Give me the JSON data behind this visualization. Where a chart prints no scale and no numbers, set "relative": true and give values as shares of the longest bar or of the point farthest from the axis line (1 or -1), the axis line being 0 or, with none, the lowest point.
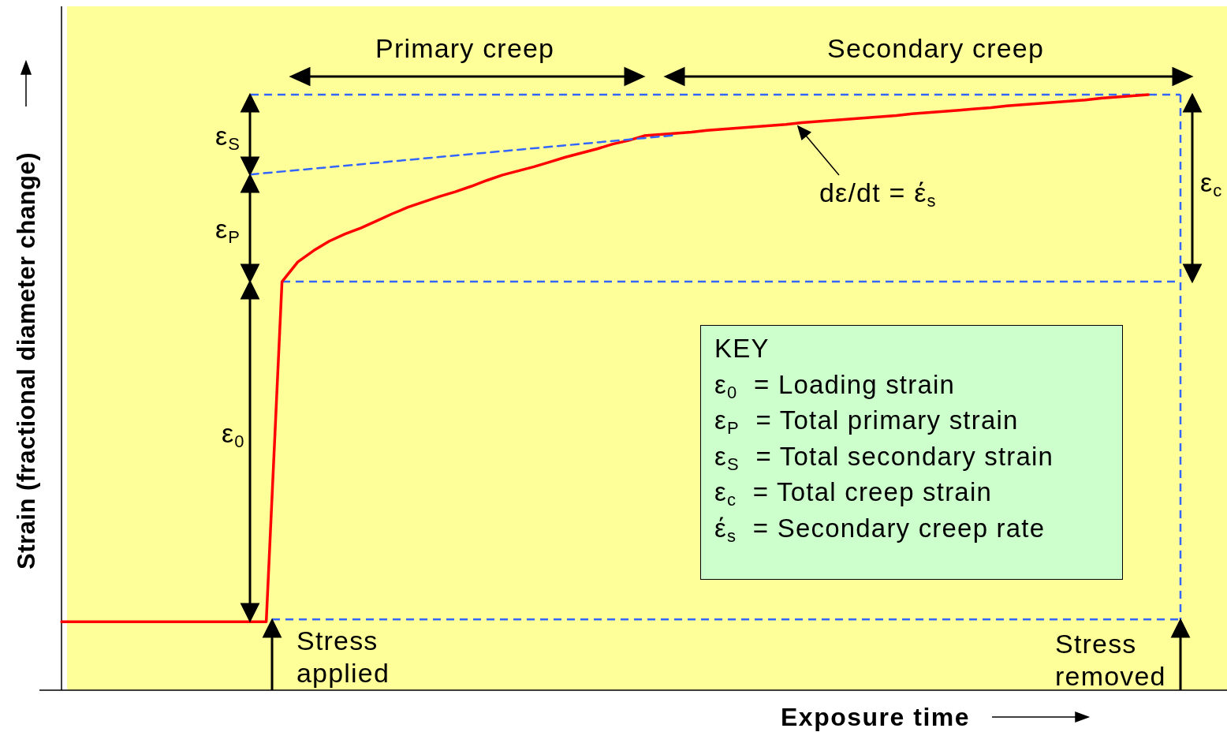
{
  "chart_data": {
    "type": "line",
    "relative": true,
    "marker": "none",
    "xlabel": "Exposure time",
    "ylabel": "Strain (fractional diameter change)",
    "categories": [
      null,
      null,
      null,
      null,
      null,
      null,
      null,
      null,
      null,
      null,
      null,
      null,
      null,
      null,
      null,
      null,
      null,
      null,
      null,
      null,
      null,
      null,
      null,
      null,
      null,
      null,
      null,
      null,
      null,
      null,
      null,
      null,
      null,
      null,
      null,
      null,
      null,
      null,
      null,
      null,
      null,
      null,
      null,
      null,
      null,
      null,
      null,
      null,
      null,
      null,
      null,
      null,
      null,
      null,
      null,
      null,
      null,
      null,
      null,
      null,
      null,
      null,
      null,
      null,
      null,
      null,
      null,
      null,
      null,
      null,
      null,
      null,
      null,
      null,
      null
    ],
    "series": [
      {
        "color": "#ff0000",
        "values": [
          0.115,
          0.115,
          0.115,
          0.115,
          0.115,
          0.115,
          0.115,
          0.115,
          0.115,
          0.115,
          0.115,
          0.115,
          0.115,
          0.115,
          0.686,
          0.719,
          0.738,
          0.754,
          0.766,
          0.776,
          0.788,
          0.8,
          0.811,
          0.82,
          0.829,
          0.837,
          0.846,
          0.856,
          0.865,
          0.872,
          0.879,
          0.887,
          0.895,
          0.902,
          0.909,
          0.917,
          0.923,
          0.931,
          0.933,
          0.935,
          0.937,
          0.94,
          0.942,
          0.944,
          0.946,
          0.948,
          0.95,
          0.953,
          0.955,
          0.957,
          0.959,
          0.961,
          0.963,
          0.965,
          0.968,
          0.97,
          0.972,
          0.974,
          0.976,
          0.978,
          0.981,
          0.983,
          0.985,
          0.987,
          0.989,
          0.991,
          0.994,
          0.996,
          0.998,
          1.0,
          null,
          null,
          null,
          null,
          null
        ]
      },
      {
        "type": "line",
        "color": "#3366ff",
        "line_style": "dashed",
        "values": [
          null,
          null,
          null,
          null,
          null,
          null,
          null,
          null,
          null,
          null,
          null,
          null,
          0.866,
          null,
          null,
          null,
          null,
          null,
          null,
          null,
          null,
          null,
          null,
          null,
          null,
          null,
          null,
          null,
          null,
          null,
          null,
          null,
          null,
          null,
          null,
          null,
          null,
          null,
          null,
          0.932,
          null,
          null,
          null,
          null,
          null,
          null,
          null,
          null,
          null,
          null,
          null,
          null,
          null,
          null,
          null,
          null,
          null,
          null,
          null,
          null,
          null,
          null,
          null,
          null,
          null,
          null,
          null,
          null,
          null,
          null,
          null,
          null,
          null,
          null,
          null
        ]
      }
    ],
    "ref_lines": [
      {
        "axis": "y",
        "value": 1.0,
        "color": "#3366ff",
        "line_style": "dashed"
      },
      {
        "axis": "y",
        "value": 0.686,
        "color": "#3366ff",
        "line_style": "dashed"
      },
      {
        "axis": "y",
        "value": 0.119,
        "color": "#3366ff",
        "line_style": "dashed"
      }
    ],
    "annotations": [
      "Primary creep",
      "Secondary creep",
      "ε$_{S}$",
      "ε$_{P}$",
      "ε$_{0}$",
      "ε$_{c}$",
      "dε/dt = έ$_{s}$",
      "Stress applied",
      "Stress removed",
      "KEY",
      "ε$_{0}$  = Loading strain",
      "ε$_{P}$  = Total primary strain",
      "ε$_{S}$  = Total secondary strain",
      "ε$_{c}$  = Total creep strain",
      "έ$_{s}$  = Secondary creep rate"
    ]
  }
}
